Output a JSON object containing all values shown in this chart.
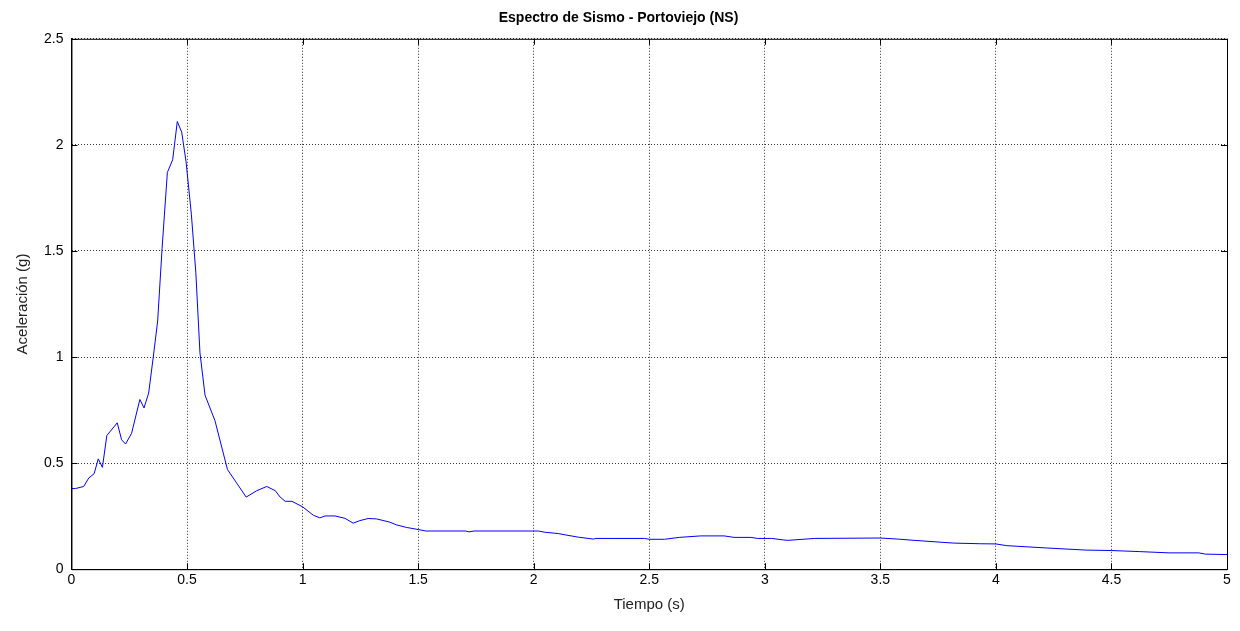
{
  "chart_data": {
    "type": "line",
    "title": "Espectro de Sismo - Portoviejo (NS)",
    "xlabel": "Tiempo (s)",
    "ylabel": "Aceleración (g)",
    "x": [
      0.0,
      0.017,
      0.053,
      0.075,
      0.098,
      0.116,
      0.134,
      0.153,
      0.198,
      0.217,
      0.234,
      0.26,
      0.296,
      0.314,
      0.334,
      0.354,
      0.373,
      0.392,
      0.415,
      0.438,
      0.458,
      0.477,
      0.496,
      0.519,
      0.538,
      0.556,
      0.578,
      0.621,
      0.675,
      0.756,
      0.802,
      0.845,
      0.882,
      0.903,
      0.925,
      0.954,
      1.0,
      1.047,
      1.075,
      1.097,
      1.14,
      1.183,
      1.219,
      1.248,
      1.284,
      1.32,
      1.377,
      1.406,
      1.449,
      1.5,
      1.534,
      1.706,
      1.72,
      1.742,
      2.02,
      2.05,
      2.107,
      2.136,
      2.193,
      2.258,
      2.27,
      2.48,
      2.5,
      2.566,
      2.63,
      2.723,
      2.824,
      2.867,
      2.94,
      2.968,
      3.03,
      3.08,
      3.1,
      3.216,
      3.5,
      3.575,
      3.646,
      3.818,
      3.933,
      4.0,
      4.047,
      4.219,
      4.391,
      4.499,
      4.62,
      4.749,
      4.878,
      4.907,
      5.0
    ],
    "series": [
      {
        "color": "#0000ff",
        "values": [
          0.38,
          0.38,
          0.39,
          0.43,
          0.45,
          0.52,
          0.48,
          0.63,
          0.69,
          0.61,
          0.59,
          0.64,
          0.8,
          0.76,
          0.83,
          1.0,
          1.17,
          1.51,
          1.87,
          1.93,
          2.11,
          2.06,
          1.92,
          1.67,
          1.4,
          1.02,
          0.82,
          0.7,
          0.47,
          0.34,
          0.37,
          0.39,
          0.37,
          0.34,
          0.32,
          0.32,
          0.294,
          0.254,
          0.242,
          0.251,
          0.251,
          0.24,
          0.217,
          0.229,
          0.239,
          0.237,
          0.222,
          0.209,
          0.197,
          0.187,
          0.18,
          0.18,
          0.176,
          0.18,
          0.18,
          0.174,
          0.168,
          0.162,
          0.151,
          0.142,
          0.145,
          0.145,
          0.141,
          0.141,
          0.15,
          0.157,
          0.157,
          0.15,
          0.15,
          0.145,
          0.145,
          0.138,
          0.136,
          0.145,
          0.147,
          0.142,
          0.136,
          0.123,
          0.12,
          0.119,
          0.111,
          0.1,
          0.09,
          0.088,
          0.083,
          0.077,
          0.077,
          0.071,
          0.069
        ]
      }
    ],
    "xlim": [
      0,
      5
    ],
    "xticks": [
      0,
      0.5,
      1,
      1.5,
      2,
      2.5,
      3,
      3.5,
      4,
      4.5,
      5
    ],
    "ylim": [
      0,
      2.5
    ],
    "yticks": [
      0,
      0.5,
      1,
      1.5,
      2,
      2.5
    ],
    "grid": true,
    "legend": false,
    "marker": "none",
    "line_style": "solid"
  }
}
